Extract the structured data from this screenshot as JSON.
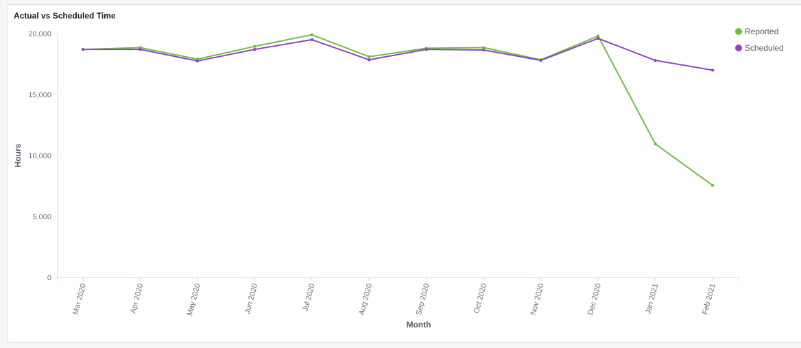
{
  "panel": {
    "title": "Actual vs Scheduled Time"
  },
  "chart_data": {
    "type": "line",
    "title": "Actual vs Scheduled Time",
    "xlabel": "Month",
    "ylabel": "Hours",
    "ylim": [
      0,
      20000
    ],
    "yticks": [
      0,
      5000,
      10000,
      15000,
      20000
    ],
    "ytick_labels": [
      "0",
      "5,000",
      "10,000",
      "15,000",
      "20,000"
    ],
    "grid": false,
    "legend_position": "top-right",
    "categories": [
      "Mar 2020",
      "Apr 2020",
      "May 2020",
      "Jun 2020",
      "Jul 2020",
      "Aug 2020",
      "Sep 2020",
      "Oct 2020",
      "Nov 2020",
      "Dec 2020",
      "Jan 2021",
      "Feb 2021"
    ],
    "series": [
      {
        "name": "Reported",
        "color": "#6dbf3e",
        "values": [
          18700,
          18850,
          17900,
          18950,
          19900,
          18100,
          18800,
          18850,
          17850,
          19800,
          10950,
          7550
        ]
      },
      {
        "name": "Scheduled",
        "color": "#8e44c4",
        "values": [
          18700,
          18700,
          17750,
          18700,
          19500,
          17850,
          18700,
          18650,
          17800,
          19600,
          17800,
          17000
        ]
      }
    ]
  }
}
